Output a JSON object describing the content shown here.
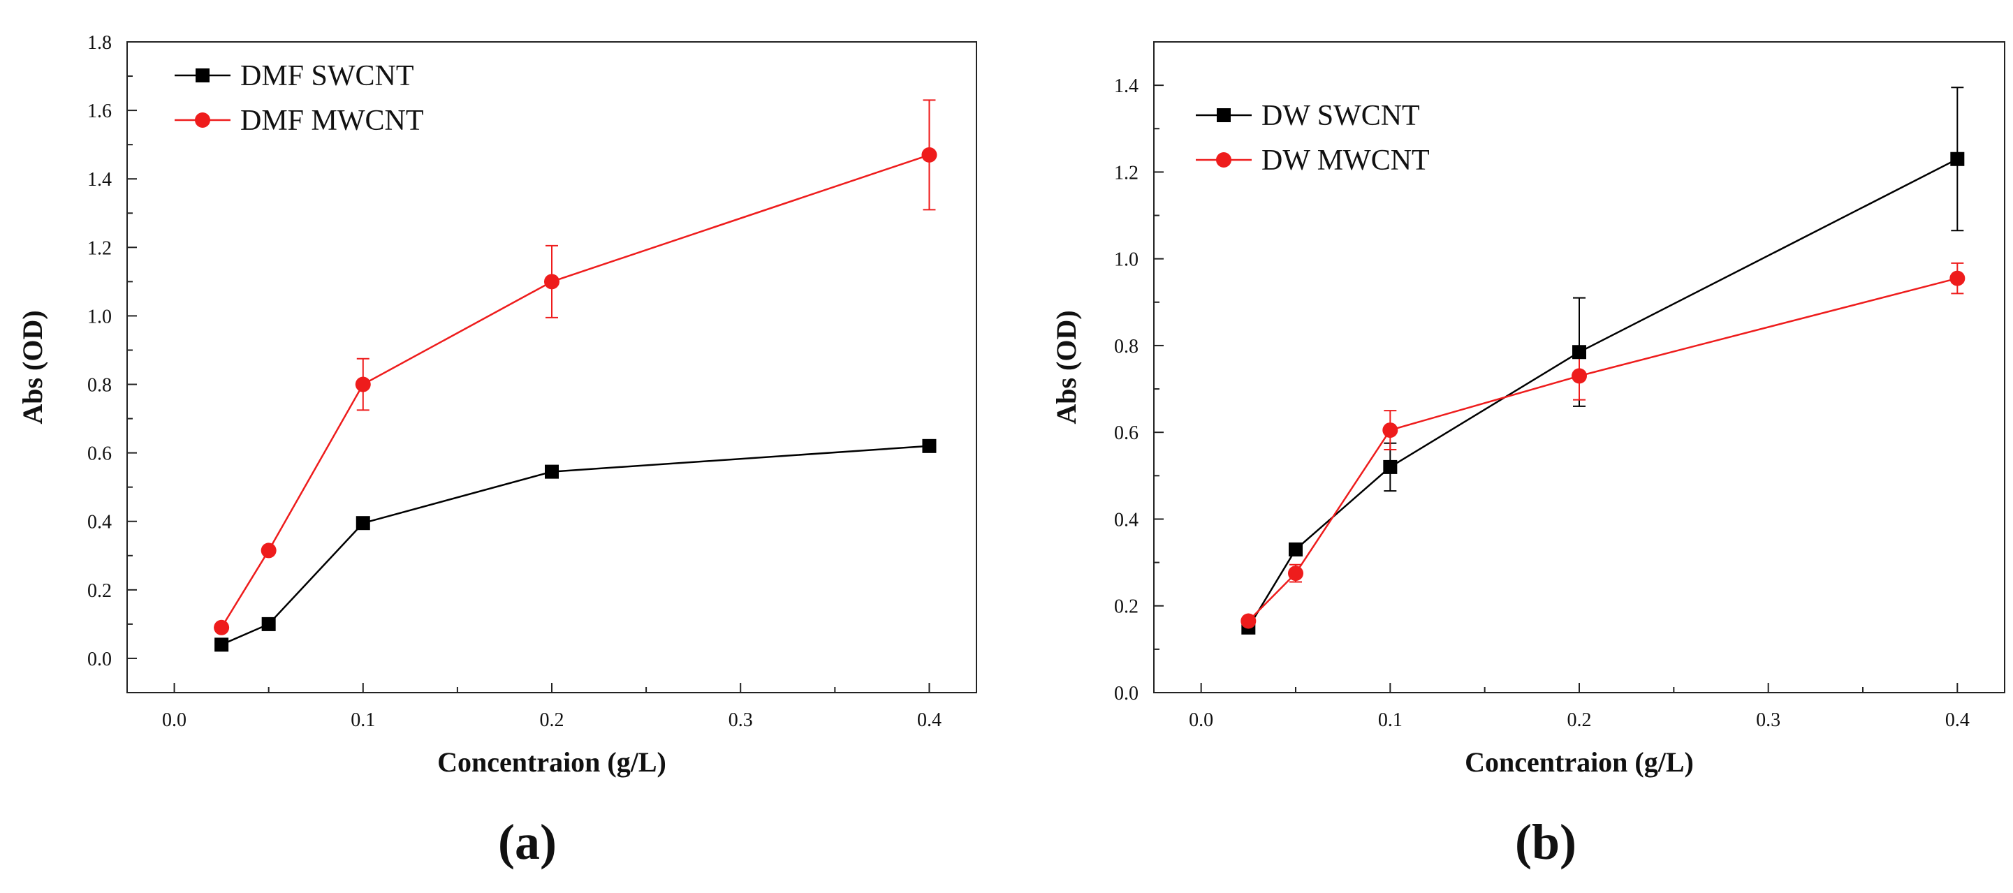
{
  "chart_data": [
    {
      "type": "line",
      "panel_label": "(a)",
      "xlabel": "Concentraion (g/L)",
      "ylabel": "Abs (OD)",
      "xlim": [
        -0.025,
        0.425
      ],
      "ylim": [
        -0.1,
        1.8
      ],
      "xticks": [
        0.0,
        0.1,
        0.2,
        0.3,
        0.4
      ],
      "xtick_labels": [
        "0.0",
        "0.1",
        "0.2",
        "0.3",
        "0.4"
      ],
      "yticks": [
        0.0,
        0.2,
        0.4,
        0.6,
        0.8,
        1.0,
        1.2,
        1.4,
        1.6,
        1.8
      ],
      "ytick_labels": [
        "0.0",
        "0.2",
        "0.4",
        "0.6",
        "0.8",
        "1.0",
        "1.2",
        "1.4",
        "1.6",
        "1.8"
      ],
      "legend_position": "top-left",
      "series": [
        {
          "name": "DMF SWCNT",
          "color": "#000000",
          "marker": "square",
          "x": [
            0.025,
            0.05,
            0.1,
            0.2,
            0.4
          ],
          "y": [
            0.04,
            0.1,
            0.395,
            0.545,
            0.62
          ],
          "error": [
            0.0,
            0.0,
            0.0,
            0.0,
            0.0
          ]
        },
        {
          "name": "DMF MWCNT",
          "color": "#ee1c1c",
          "marker": "circle",
          "x": [
            0.025,
            0.05,
            0.1,
            0.2,
            0.4
          ],
          "y": [
            0.09,
            0.315,
            0.8,
            1.1,
            1.47
          ],
          "error": [
            0.0,
            0.0,
            0.075,
            0.105,
            0.16
          ]
        }
      ]
    },
    {
      "type": "line",
      "panel_label": "(b)",
      "xlabel": "Concentraion (g/L)",
      "ylabel": "Abs (OD)",
      "xlim": [
        -0.025,
        0.425
      ],
      "ylim": [
        0.0,
        1.5
      ],
      "xticks": [
        0.0,
        0.1,
        0.2,
        0.3,
        0.4
      ],
      "xtick_labels": [
        "0.0",
        "0.1",
        "0.2",
        "0.3",
        "0.4"
      ],
      "yticks": [
        0.0,
        0.2,
        0.4,
        0.6,
        0.8,
        1.0,
        1.2,
        1.4
      ],
      "ytick_labels": [
        "0.0",
        "0.2",
        "0.4",
        "0.6",
        "0.8",
        "1.0",
        "1.2",
        "1.4"
      ],
      "legend_position": "top-left",
      "series": [
        {
          "name": "DW SWCNT",
          "color": "#000000",
          "marker": "square",
          "x": [
            0.025,
            0.05,
            0.1,
            0.2,
            0.4
          ],
          "y": [
            0.15,
            0.33,
            0.52,
            0.785,
            1.23
          ],
          "error": [
            0.0,
            0.0,
            0.055,
            0.125,
            0.165
          ]
        },
        {
          "name": "DW MWCNT",
          "color": "#ee1c1c",
          "marker": "circle",
          "x": [
            0.025,
            0.05,
            0.1,
            0.2,
            0.4
          ],
          "y": [
            0.165,
            0.275,
            0.605,
            0.73,
            0.955
          ],
          "error": [
            0.0,
            0.02,
            0.045,
            0.055,
            0.035
          ]
        }
      ]
    }
  ]
}
